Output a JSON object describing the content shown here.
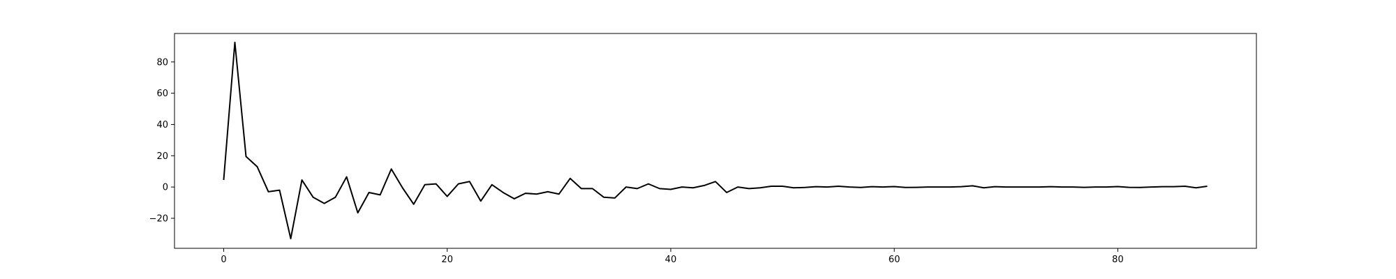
{
  "chart_data": {
    "type": "line",
    "title": "",
    "xlabel": "",
    "ylabel": "",
    "xlim": [
      -4.4,
      92.4
    ],
    "ylim": [
      -39.2,
      98.2
    ],
    "grid": false,
    "line_color": "#000000",
    "x_ticks": [
      0,
      20,
      40,
      60,
      80
    ],
    "x_tick_labels": [
      "0",
      "20",
      "40",
      "60",
      "80"
    ],
    "y_ticks": [
      -20,
      0,
      20,
      40,
      60,
      80
    ],
    "y_tick_labels": [
      "−20",
      "0",
      "20",
      "40",
      "60",
      "80"
    ],
    "series": [
      {
        "x": [
          0,
          1,
          2,
          3,
          4,
          5,
          6,
          7,
          8,
          9,
          10,
          11,
          12,
          13,
          14,
          15,
          16,
          17,
          18,
          19,
          20,
          21,
          22,
          23,
          24,
          25,
          26,
          27,
          28,
          29,
          30,
          31,
          32,
          33,
          34,
          35,
          36,
          37,
          38,
          39,
          40,
          41,
          42,
          43,
          44,
          45,
          46,
          47,
          48,
          49,
          50,
          51,
          52,
          53,
          54,
          55,
          56,
          57,
          58,
          59,
          60,
          61,
          62,
          63,
          64,
          65,
          66,
          67,
          68,
          69,
          70,
          71,
          72,
          73,
          74,
          75,
          76,
          77,
          78,
          79,
          80,
          81,
          82,
          83,
          84,
          85,
          86,
          87,
          88
        ],
        "values": [
          4.5,
          92.5,
          19.5,
          13,
          -3,
          -2,
          -33,
          4.5,
          -6.5,
          -10.5,
          -6.5,
          6.5,
          -16.5,
          -3.5,
          -5,
          11.5,
          -0.5,
          -11,
          1.5,
          2,
          -6,
          2,
          3.5,
          -9,
          1.5,
          -3.5,
          -7.5,
          -4,
          -4.5,
          -3,
          -4.5,
          5.5,
          -1,
          -1,
          -6.5,
          -7,
          0,
          -1,
          2,
          -1,
          -1.5,
          0,
          -0.5,
          1,
          3.5,
          -3.5,
          0,
          -1,
          -0.5,
          0.5,
          0.5,
          -0.5,
          -0.3,
          0.2,
          0,
          0.5,
          0,
          -0.3,
          0.2,
          0,
          0.3,
          -0.3,
          -0.2,
          0,
          0,
          0,
          0.2,
          0.8,
          -0.5,
          0.2,
          0,
          0,
          0,
          0,
          0.2,
          0,
          0,
          -0.2,
          0,
          0,
          0.3,
          -0.2,
          -0.3,
          0,
          0.2,
          0.2,
          0.5,
          -0.5,
          0.5
        ]
      }
    ]
  }
}
